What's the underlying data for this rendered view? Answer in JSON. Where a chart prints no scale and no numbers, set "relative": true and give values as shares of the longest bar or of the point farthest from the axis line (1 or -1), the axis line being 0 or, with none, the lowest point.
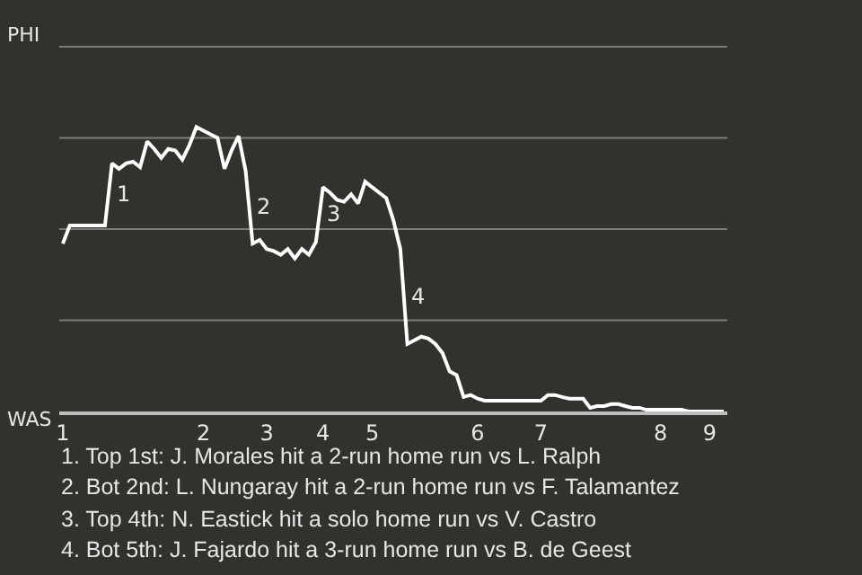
{
  "chart_data": {
    "type": "line",
    "relative": true,
    "categories": [
      "1",
      null,
      null,
      null,
      null,
      null,
      null,
      null,
      null,
      null,
      null,
      null,
      null,
      null,
      null,
      null,
      null,
      null,
      null,
      null,
      "2",
      null,
      null,
      null,
      null,
      null,
      null,
      null,
      null,
      "3",
      null,
      null,
      null,
      null,
      null,
      null,
      null,
      "4",
      null,
      null,
      null,
      null,
      null,
      null,
      "5",
      null,
      null,
      null,
      null,
      null,
      null,
      null,
      null,
      null,
      null,
      null,
      null,
      null,
      null,
      "6",
      null,
      null,
      null,
      null,
      null,
      null,
      null,
      null,
      "7",
      null,
      null,
      null,
      null,
      null,
      null,
      null,
      null,
      null,
      null,
      null,
      null,
      null,
      null,
      null,
      null,
      "8",
      null,
      null,
      null,
      null,
      null,
      null,
      "9",
      null,
      null
    ],
    "series": [
      {
        "color": "#ffffff",
        "values": [
          0.59,
          0.654,
          0.654,
          0.654,
          0.654,
          0.654,
          0.654,
          0.872,
          0.853,
          0.872,
          0.878,
          0.859,
          0.949,
          0.923,
          0.891,
          0.923,
          0.917,
          0.885,
          0.936,
          1,
          0.987,
          0.974,
          0.962,
          0.853,
          0.917,
          0.968,
          0.846,
          0.59,
          0.603,
          0.571,
          0.564,
          0.551,
          0.571,
          0.538,
          0.571,
          0.551,
          0.596,
          0.788,
          0.769,
          0.744,
          0.737,
          0.763,
          0.731,
          0.808,
          0.788,
          0.769,
          0.75,
          0.673,
          0.571,
          0.237,
          0.25,
          0.263,
          0.256,
          0.237,
          0.205,
          0.141,
          0.128,
          0.051,
          0.058,
          0.045,
          0.038,
          0.038,
          0.038,
          0.038,
          0.038,
          0.038,
          0.038,
          0.038,
          0.038,
          0.058,
          0.058,
          0.051,
          0.045,
          0.045,
          0.045,
          0.013,
          0.019,
          0.019,
          0.026,
          0.026,
          0.019,
          0.013,
          0.013,
          0.006,
          0.006,
          0.006,
          0.006,
          0.006,
          0.006,
          0,
          0,
          0,
          0,
          0,
          0
        ]
      }
    ],
    "grid": "y",
    "marker": "none",
    "annotations": [
      "1",
      "2",
      "3",
      "4",
      "PHI",
      "WAS",
      "1. Top 1st: J. Morales hit a 2-run home run vs L. Ralph",
      "2. Bot 2nd: L. Nungaray hit a 2-run home run vs F. Talamantez",
      "3. Top 4th: N. Eastick hit a solo home run vs V. Castro",
      "4. Bot 5th: J. Fajardo hit a 3-run home run vs B. de Geest"
    ]
  }
}
